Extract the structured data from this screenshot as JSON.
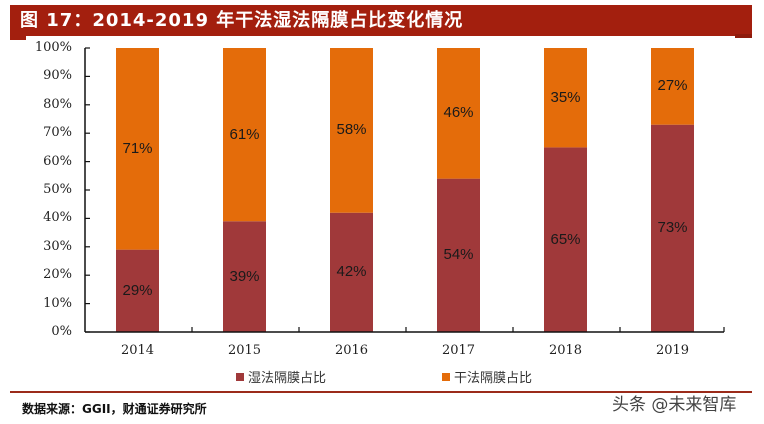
{
  "header": {
    "title": "图 17：2014-2019 年干法湿法隔膜占比变化情况",
    "bar_color": "#A31F0E"
  },
  "chart_data": {
    "type": "bar",
    "stacked": true,
    "title": "图 17：2014-2019 年干法湿法隔膜占比变化情况",
    "xlabel": "",
    "ylabel": "",
    "categories": [
      "2014",
      "2015",
      "2016",
      "2017",
      "2018",
      "2019"
    ],
    "series": [
      {
        "name": "湿法隔膜占比",
        "color": "#A0393A",
        "values": [
          29,
          39,
          42,
          54,
          65,
          73
        ],
        "labels": [
          "29%",
          "39%",
          "42%",
          "54%",
          "65%",
          "73%"
        ]
      },
      {
        "name": "干法隔膜占比",
        "color": "#E46C0A",
        "values": [
          71,
          61,
          58,
          46,
          35,
          27
        ],
        "labels": [
          "71%",
          "61%",
          "58%",
          "46%",
          "35%",
          "27%"
        ]
      }
    ],
    "ylim": [
      0,
      100
    ],
    "yticks": [
      "0%",
      "10%",
      "20%",
      "30%",
      "40%",
      "50%",
      "60%",
      "70%",
      "80%",
      "90%",
      "100%"
    ],
    "grid": false,
    "legend_position": "bottom"
  },
  "legend": {
    "items": [
      {
        "label": "湿法隔膜占比",
        "color": "#A0393A"
      },
      {
        "label": "干法隔膜占比",
        "color": "#E46C0A"
      }
    ]
  },
  "footer": {
    "source": "数据来源：GGII，财通证券研究所",
    "rule_color": "#9B2B1A"
  },
  "watermark": {
    "text": "头条 @未来智库"
  }
}
